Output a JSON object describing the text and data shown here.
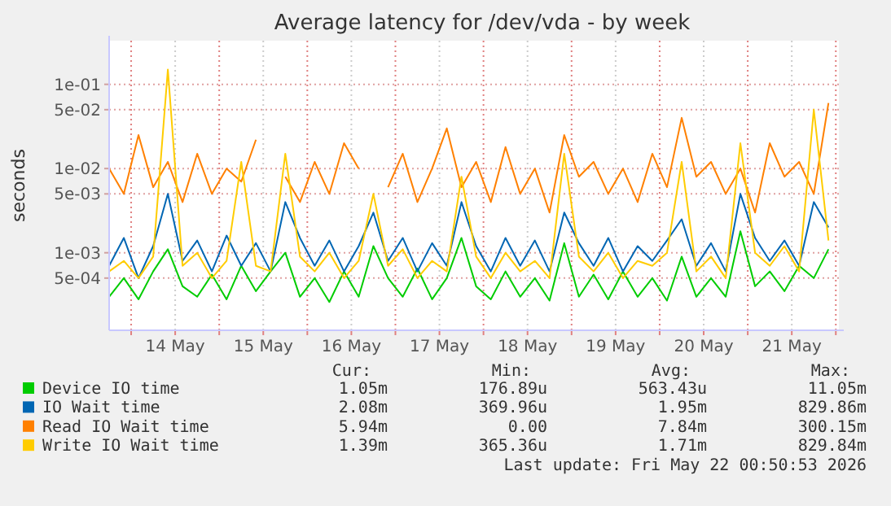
{
  "chart_data": {
    "type": "line",
    "title": "Average latency for /dev/vda - by week",
    "ylabel": "seconds",
    "log": true,
    "grid": true,
    "legend": "bottom",
    "marker": "none",
    "line_style": "solid",
    "xlim": [
      "2026-05-13T18:00",
      "2026-05-22T00:50"
    ],
    "xticks": [
      {
        "value": "2026-05-14T00:00",
        "label": null
      },
      {
        "value": "2026-05-14T12:00",
        "label": "14 May"
      },
      {
        "value": "2026-05-15T00:00",
        "label": null
      },
      {
        "value": "2026-05-15T12:00",
        "label": "15 May"
      },
      {
        "value": "2026-05-16T00:00",
        "label": null
      },
      {
        "value": "2026-05-16T12:00",
        "label": "16 May"
      },
      {
        "value": "2026-05-17T00:00",
        "label": null
      },
      {
        "value": "2026-05-17T12:00",
        "label": "17 May"
      },
      {
        "value": "2026-05-18T00:00",
        "label": null
      },
      {
        "value": "2026-05-18T12:00",
        "label": "18 May"
      },
      {
        "value": "2026-05-19T00:00",
        "label": null
      },
      {
        "value": "2026-05-19T12:00",
        "label": "19 May"
      },
      {
        "value": "2026-05-20T00:00",
        "label": null
      },
      {
        "value": "2026-05-20T12:00",
        "label": "20 May"
      },
      {
        "value": "2026-05-21T00:00",
        "label": null
      },
      {
        "value": "2026-05-21T12:00",
        "label": "21 May"
      },
      {
        "value": "2026-05-22T00:00",
        "label": null
      }
    ],
    "ylim": [
      0.00012,
      0.33
    ],
    "yticks": [
      {
        "value": 0.0005,
        "label": "5e-04"
      },
      {
        "value": 0.001,
        "label": "1e-03"
      },
      {
        "value": 0.005,
        "label": "5e-03"
      },
      {
        "value": 0.01,
        "label": "1e-02"
      },
      {
        "value": 0.05,
        "label": "5e-02"
      },
      {
        "value": 0.1,
        "label": "1e-01"
      }
    ],
    "x": [
      "2026-05-13T18:00",
      "2026-05-13T22:00",
      "2026-05-14T02:00",
      "2026-05-14T06:00",
      "2026-05-14T10:00",
      "2026-05-14T14:00",
      "2026-05-14T18:00",
      "2026-05-14T22:00",
      "2026-05-15T02:00",
      "2026-05-15T06:00",
      "2026-05-15T10:00",
      "2026-05-15T14:00",
      "2026-05-15T18:00",
      "2026-05-15T22:00",
      "2026-05-16T02:00",
      "2026-05-16T06:00",
      "2026-05-16T10:00",
      "2026-05-16T14:00",
      "2026-05-16T18:00",
      "2026-05-16T22:00",
      "2026-05-17T02:00",
      "2026-05-17T06:00",
      "2026-05-17T10:00",
      "2026-05-17T14:00",
      "2026-05-17T18:00",
      "2026-05-17T22:00",
      "2026-05-18T02:00",
      "2026-05-18T06:00",
      "2026-05-18T10:00",
      "2026-05-18T14:00",
      "2026-05-18T18:00",
      "2026-05-18T22:00",
      "2026-05-19T02:00",
      "2026-05-19T06:00",
      "2026-05-19T10:00",
      "2026-05-19T14:00",
      "2026-05-19T18:00",
      "2026-05-19T22:00",
      "2026-05-20T02:00",
      "2026-05-20T06:00",
      "2026-05-20T10:00",
      "2026-05-20T14:00",
      "2026-05-20T18:00",
      "2026-05-20T22:00",
      "2026-05-21T02:00",
      "2026-05-21T06:00",
      "2026-05-21T10:00",
      "2026-05-21T14:00",
      "2026-05-21T18:00",
      "2026-05-21T22:00"
    ],
    "series": [
      {
        "name": "Device IO time",
        "color": "#00cc00",
        "values": [
          0.0003,
          0.0005,
          0.00028,
          0.0006,
          0.0011,
          0.0004,
          0.0003,
          0.00055,
          0.00028,
          0.0007,
          0.00035,
          0.0006,
          0.001,
          0.0003,
          0.0005,
          0.00026,
          0.0006,
          0.0003,
          0.0012,
          0.0005,
          0.0003,
          0.00065,
          0.00028,
          0.0005,
          0.0015,
          0.0004,
          0.00028,
          0.0006,
          0.0003,
          0.0005,
          0.00027,
          0.0013,
          0.0003,
          0.00055,
          0.00028,
          0.0006,
          0.0003,
          0.0005,
          0.00027,
          0.0009,
          0.0003,
          0.0005,
          0.0003,
          0.0018,
          0.0004,
          0.0006,
          0.00035,
          0.0007,
          0.0005,
          0.0011
        ]
      },
      {
        "name": "IO Wait time",
        "color": "#0066b3",
        "values": [
          0.0007,
          0.0015,
          0.0005,
          0.0012,
          0.005,
          0.0008,
          0.0014,
          0.0006,
          0.0016,
          0.0007,
          0.0013,
          0.0006,
          0.004,
          0.0015,
          0.0007,
          0.0014,
          0.0006,
          0.0012,
          0.003,
          0.0008,
          0.0015,
          0.0006,
          0.0013,
          0.0007,
          0.004,
          0.0012,
          0.0006,
          0.0015,
          0.0007,
          0.0014,
          0.0006,
          0.003,
          0.0013,
          0.0007,
          0.0015,
          0.0006,
          0.0012,
          0.0008,
          0.0014,
          0.0025,
          0.0007,
          0.0013,
          0.0006,
          0.005,
          0.0015,
          0.0008,
          0.0014,
          0.0007,
          0.004,
          0.002
        ]
      },
      {
        "name": "Read IO Wait time",
        "color": "#ff8000",
        "values": [
          0.01,
          0.005,
          0.025,
          0.006,
          0.012,
          0.004,
          0.015,
          0.005,
          0.01,
          0.007,
          0.022,
          null,
          0.008,
          0.004,
          0.012,
          0.005,
          0.02,
          0.01,
          null,
          0.006,
          0.015,
          0.004,
          0.01,
          0.03,
          0.006,
          0.012,
          0.004,
          0.018,
          0.005,
          0.01,
          0.003,
          0.025,
          0.008,
          0.012,
          0.005,
          0.01,
          0.004,
          0.015,
          0.006,
          0.04,
          0.008,
          0.012,
          0.005,
          0.01,
          0.003,
          0.02,
          0.008,
          0.012,
          0.005,
          0.06
        ]
      },
      {
        "name": "Write IO Wait time",
        "color": "#ffcc00",
        "values": [
          0.0006,
          0.0008,
          0.0005,
          0.0009,
          0.15,
          0.0007,
          0.001,
          0.0005,
          0.0008,
          0.012,
          0.0007,
          0.0006,
          0.015,
          0.0009,
          0.0006,
          0.001,
          0.0005,
          0.0008,
          0.005,
          0.0007,
          0.0011,
          0.0005,
          0.0008,
          0.0006,
          0.008,
          0.0009,
          0.0005,
          0.001,
          0.0006,
          0.0008,
          0.0005,
          0.015,
          0.0009,
          0.0006,
          0.001,
          0.0005,
          0.0008,
          0.0007,
          0.001,
          0.012,
          0.0006,
          0.0009,
          0.0005,
          0.02,
          0.001,
          0.0007,
          0.0012,
          0.0006,
          0.05,
          0.0014
        ]
      }
    ],
    "annotations": [
      "Cur:",
      "Min:",
      "Avg:",
      "Max:",
      "1.05m",
      "176.89u",
      "563.43u",
      "11.05m",
      "2.08m",
      "369.96u",
      "1.95m",
      "829.86m",
      "5.94m",
      "0.00",
      "7.84m",
      "300.15m",
      "1.39m",
      "365.36u",
      "1.71m",
      "829.84m",
      "Last update: Fri May 22 00:50:53 2026"
    ]
  }
}
